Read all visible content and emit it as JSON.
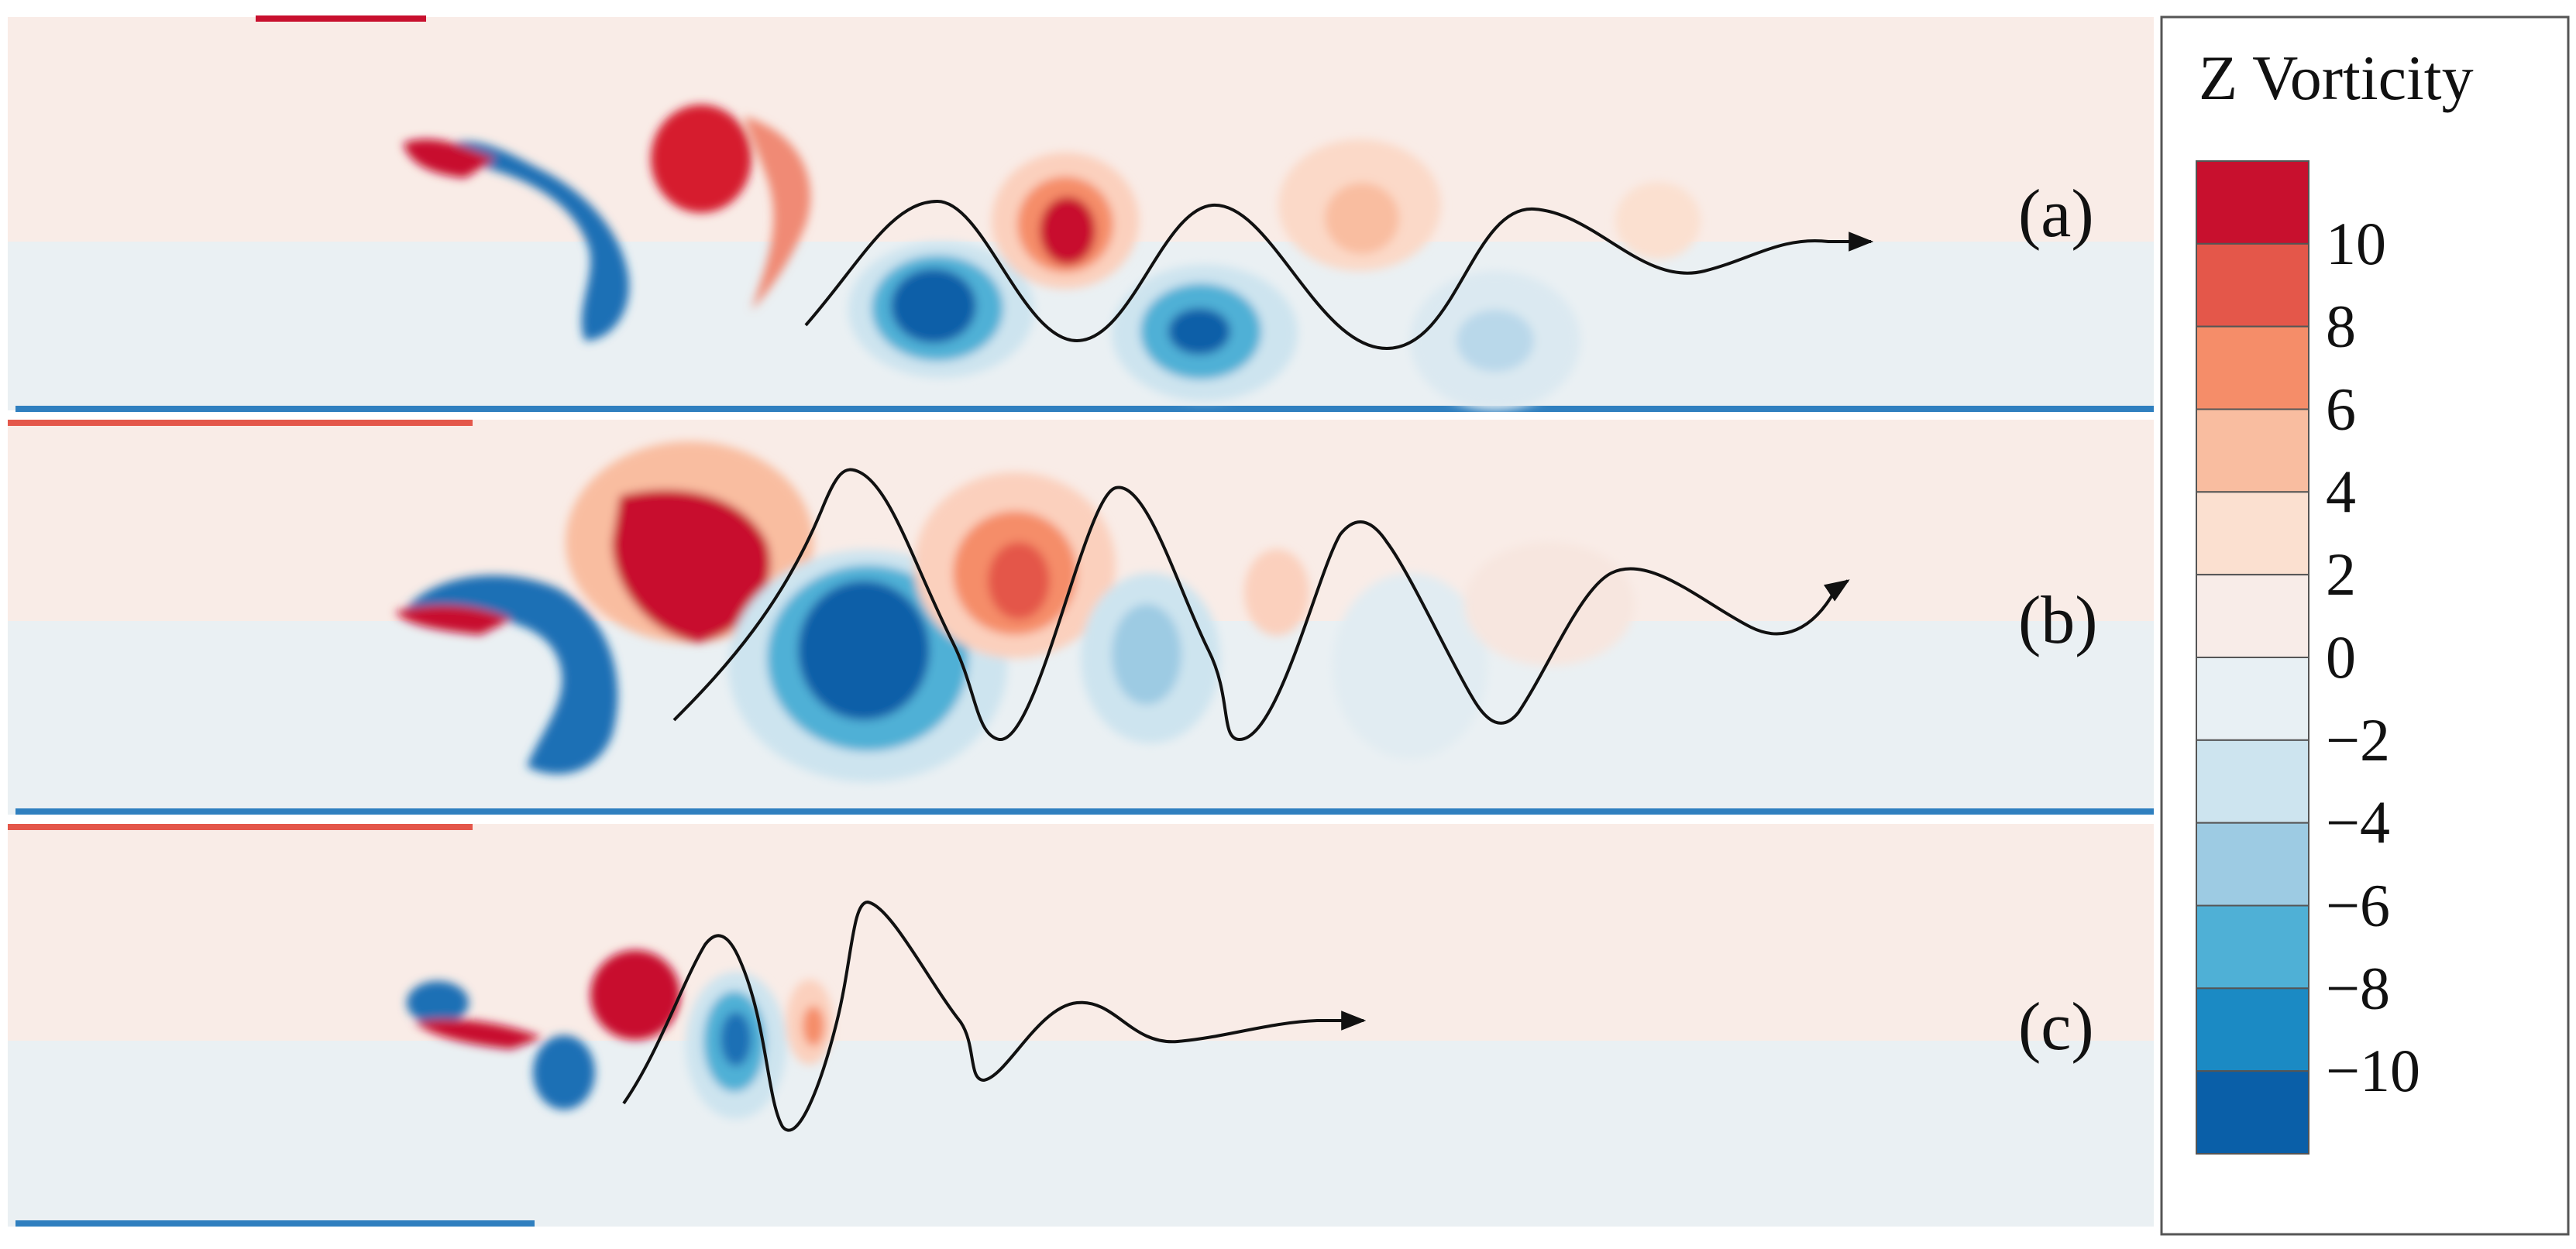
{
  "panels": [
    {
      "id": "a",
      "label": "(a)"
    },
    {
      "id": "b",
      "label": "(b)"
    },
    {
      "id": "c",
      "label": "(c)"
    }
  ],
  "colorbar": {
    "title": "Z Vorticity",
    "tick_labels": [
      "10",
      "8",
      "6",
      "4",
      "2",
      "0",
      "−2",
      "−4",
      "−6",
      "−8",
      "−10"
    ],
    "colors": [
      "#c8102e",
      "#e4574a",
      "#f58d69",
      "#f9bda0",
      "#fbe0d0",
      "#f8ece8",
      "#e8f0f4",
      "#cde4ef",
      "#9dcbe3",
      "#4fb0d6",
      "#1b8ac4",
      "#0a5fa8"
    ]
  },
  "background": {
    "positive": "#f9ece7",
    "negative": "#e9f0f4",
    "wall": "#d6dde2"
  }
}
